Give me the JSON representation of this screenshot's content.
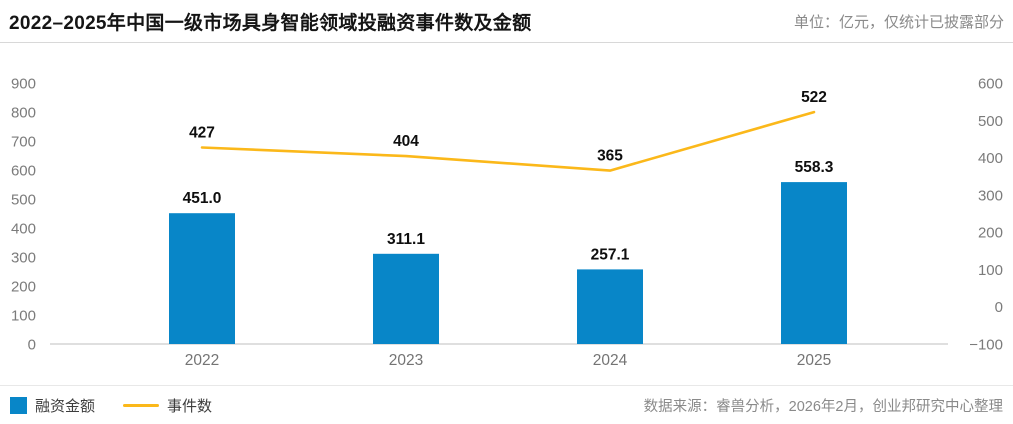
{
  "header": {
    "title": "2022–2025年中国一级市场具身智能领域投融资事件数及金额",
    "unit_note": "单位：亿元，仅统计已披露部分"
  },
  "legend": {
    "bar_label": "融资金额",
    "line_label": "事件数"
  },
  "footer": {
    "source": "数据来源：睿兽分析，2026年2月，创业邦研究中心整理"
  },
  "colors": {
    "bar": "#0886c8",
    "line": "#fbb81a",
    "axis_text": "#7b7b7b",
    "baseline": "#bfbfbf"
  },
  "chart_data": {
    "type": "bar+line",
    "title": "2022–2025年中国一级市场具身智能领域投融资事件数及金额",
    "unit": "亿元",
    "categories": [
      "2022",
      "2023",
      "2024",
      "2025"
    ],
    "series": [
      {
        "name": "融资金额",
        "type": "bar",
        "axis": "left",
        "color": "#0886c8",
        "values": [
          451.0,
          311.1,
          257.1,
          558.3
        ],
        "labels": [
          "451.0",
          "311.1",
          "257.1",
          "558.3"
        ]
      },
      {
        "name": "事件数",
        "type": "line",
        "axis": "right",
        "color": "#fbb81a",
        "values": [
          427,
          404,
          365,
          522
        ],
        "labels": [
          "427",
          "404",
          "365",
          "522"
        ]
      }
    ],
    "y_left": {
      "min": 0,
      "max": 900,
      "step": 100,
      "ticks": [
        "0",
        "100",
        "200",
        "300",
        "400",
        "500",
        "600",
        "700",
        "800",
        "900"
      ]
    },
    "y_right": {
      "min": -100,
      "max": 600,
      "step": 100,
      "ticks": [
        "−100",
        "0",
        "100",
        "200",
        "300",
        "400",
        "500",
        "600"
      ]
    },
    "grid": false,
    "legend_position": "bottom-left"
  }
}
